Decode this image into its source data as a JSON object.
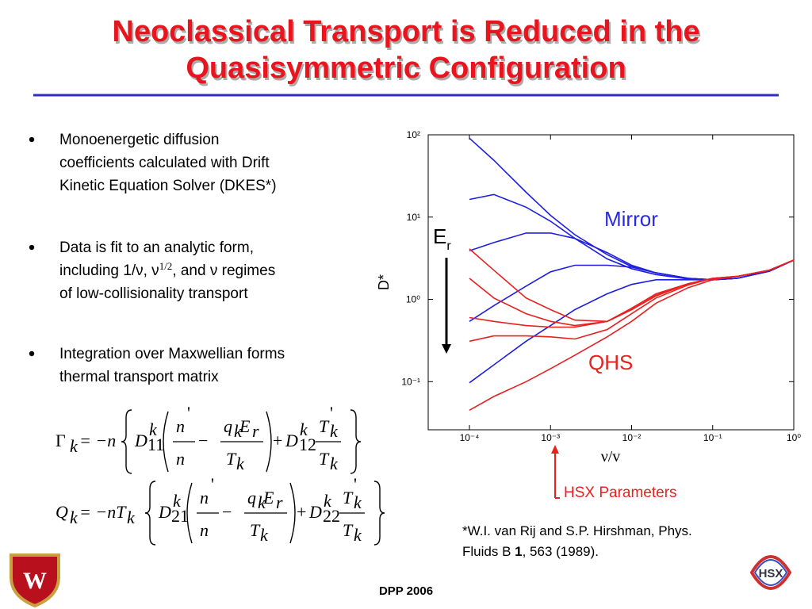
{
  "header": {
    "title": [
      "Neoclassical Transport is Reduced in the",
      "Quasisymmetric Configuration"
    ]
  },
  "bullets": [
    [
      "Monoenergetic diffusion",
      "coefficients calculated with Drift",
      "Kinetic Equation Solver (DKES*)"
    ],
    [
      "Data is fit to an analytic form,",
      [
        "including 1/ν, ν",
        "1/2",
        ", and ν regimes"
      ],
      "of low-collisionality transport"
    ],
    [
      "Integration over Maxwellian forms",
      "thermal transport matrix"
    ]
  ],
  "equations": [
    [
      "Γ",
      "k",
      "= −n",
      "D",
      "k",
      "11",
      "n",
      "'",
      "n",
      "−",
      "q",
      "k",
      "E",
      "r",
      "T",
      "k",
      "+",
      "D",
      "k",
      "12",
      "T",
      "'",
      "k",
      "T",
      "k"
    ],
    [
      "Q",
      "k",
      "= −nT",
      "k",
      "D",
      "k",
      "21",
      "n",
      "'",
      "n",
      "−",
      "q",
      "k",
      "E",
      "r",
      "T",
      "k",
      "+",
      "D",
      "k",
      "22",
      "T",
      "'",
      "k",
      "T",
      "k"
    ]
  ],
  "chart_data": {
    "type": "line",
    "xlabel": "ν/v",
    "ylabel": "D*",
    "xlog": true,
    "ylog": true,
    "xlim": [
      3.1e-05,
      1
    ],
    "ylim": [
      0.026,
      100
    ],
    "xticks": [
      {
        "value": 0.0001,
        "label": "10⁻⁴"
      },
      {
        "value": 0.001,
        "label": "10⁻³"
      },
      {
        "value": 0.01,
        "label": "10⁻²"
      },
      {
        "value": 0.1,
        "label": "10⁻¹"
      },
      {
        "value": 1,
        "label": "10⁰"
      }
    ],
    "yticks": [
      {
        "value": 0.1,
        "label": "10⁻¹"
      },
      {
        "value": 1,
        "label": "10⁰"
      },
      {
        "value": 10,
        "label": "10¹"
      },
      {
        "value": 100,
        "label": "10²"
      }
    ],
    "x": [
      0.0001,
      0.0002,
      0.0005,
      0.001,
      0.002,
      0.005,
      0.01,
      0.02,
      0.05,
      0.1,
      0.2,
      0.5,
      1
    ],
    "series": [
      {
        "color": "#1f1fe0",
        "values": [
          91,
          49,
          20,
          10.5,
          6.1,
          3.5,
          2.5,
          2.1,
          1.8,
          1.73,
          1.8,
          2.2,
          3.0
        ]
      },
      {
        "color": "#1f1fe0",
        "values": [
          16.4,
          18.8,
          13.2,
          8.9,
          5.5,
          3.1,
          2.36,
          2.0,
          1.77,
          1.73,
          1.8,
          2.2,
          3.0
        ]
      },
      {
        "color": "#1f1fe0",
        "values": [
          3.9,
          4.9,
          6.4,
          6.4,
          5.5,
          3.7,
          2.6,
          2.1,
          1.8,
          1.73,
          1.8,
          2.2,
          3.0
        ]
      },
      {
        "color": "#1f1fe0",
        "values": [
          0.54,
          0.84,
          1.45,
          2.16,
          2.6,
          2.6,
          2.47,
          2.1,
          1.8,
          1.73,
          1.8,
          2.2,
          3.0
        ]
      },
      {
        "color": "#1f1fe0",
        "values": [
          0.097,
          0.16,
          0.31,
          0.48,
          0.75,
          1.17,
          1.52,
          1.73,
          1.73,
          1.73,
          1.8,
          2.2,
          3.0
        ]
      },
      {
        "color": "#e82020",
        "values": [
          4.1,
          2.26,
          1.04,
          0.75,
          0.56,
          0.54,
          0.78,
          1.17,
          1.55,
          1.8,
          1.9,
          2.26,
          3.0
        ]
      },
      {
        "color": "#e82020",
        "values": [
          1.8,
          1.04,
          0.67,
          0.54,
          0.48,
          0.54,
          0.75,
          1.12,
          1.55,
          1.8,
          1.9,
          2.26,
          3.0
        ]
      },
      {
        "color": "#e82020",
        "values": [
          0.6,
          0.54,
          0.48,
          0.46,
          0.46,
          0.54,
          0.75,
          1.1,
          1.55,
          1.8,
          1.9,
          2.26,
          3.0
        ]
      },
      {
        "color": "#e82020",
        "values": [
          0.31,
          0.36,
          0.36,
          0.35,
          0.33,
          0.43,
          0.67,
          1.04,
          1.5,
          1.8,
          1.9,
          2.26,
          3.0
        ]
      },
      {
        "color": "#e82020",
        "values": [
          0.045,
          0.066,
          0.1,
          0.144,
          0.21,
          0.35,
          0.54,
          0.9,
          1.39,
          1.73,
          1.9,
          2.26,
          3.0
        ]
      }
    ],
    "annotations": {
      "mirror": "Mirror",
      "qhs": "QHS",
      "er": "E",
      "er_sub": "r",
      "hsx": "HSX Parameters"
    }
  },
  "footnote": [
    "*W.I. van Rij and S.P. Hirshman, Phys.",
    [
      "Fluids B ",
      "1",
      ", 563 (1989)."
    ]
  ],
  "footer": "DPP 2006",
  "logos": {
    "left": "W",
    "right": "HSX"
  }
}
